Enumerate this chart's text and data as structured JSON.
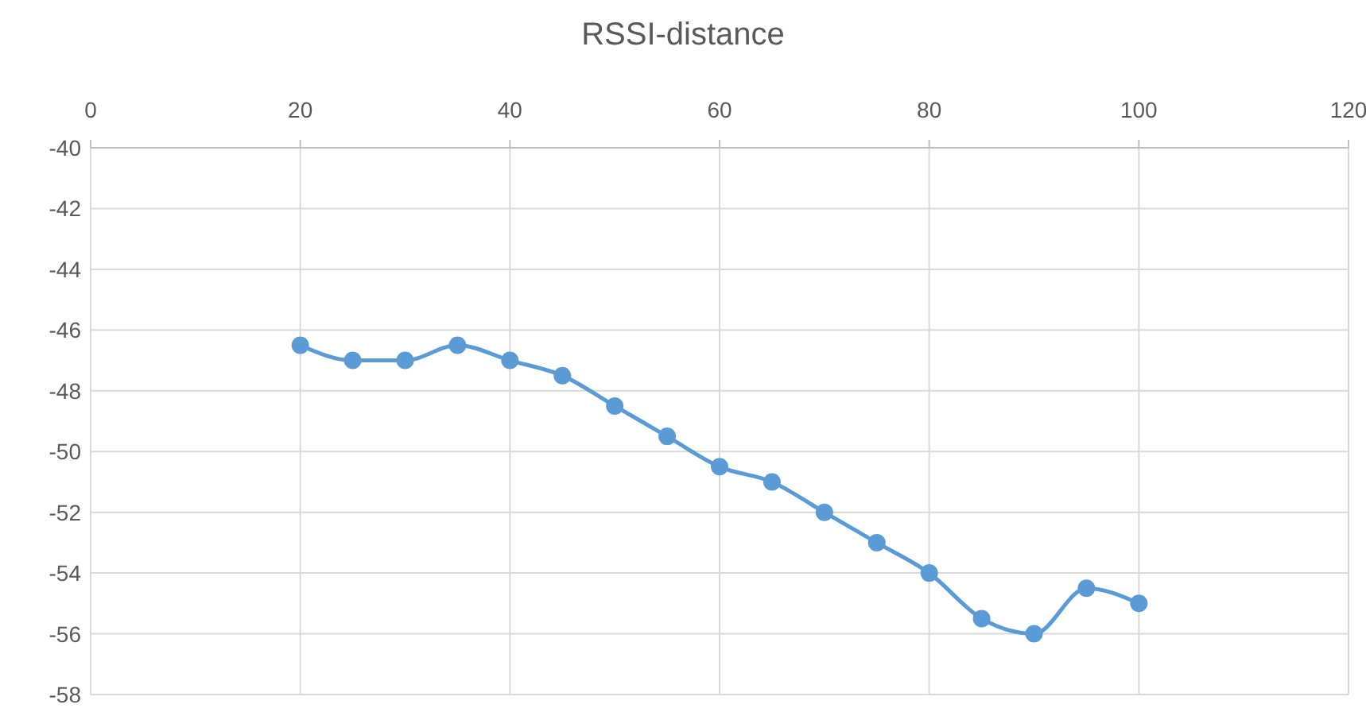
{
  "chart_data": {
    "type": "line",
    "title": "RSSI-distance",
    "x": [
      20,
      25,
      30,
      35,
      40,
      45,
      50,
      55,
      60,
      65,
      70,
      75,
      80,
      85,
      90,
      95,
      100
    ],
    "series": [
      {
        "color": "#5b9bd5",
        "values": [
          -46.5,
          -47,
          -47,
          -46.5,
          -47,
          -47.5,
          -48.5,
          -49.5,
          -50.5,
          -51,
          -52,
          -53,
          -54,
          -55.5,
          -56,
          -54.5,
          -55
        ]
      }
    ],
    "xlim": [
      0,
      120
    ],
    "xticks": [
      0,
      20,
      40,
      60,
      80,
      100,
      120
    ],
    "ylim": [
      -58,
      -40
    ],
    "yticks": [
      -58,
      -56,
      -54,
      -52,
      -50,
      -48,
      -46,
      -44,
      -42,
      -40
    ],
    "grid": true,
    "marker": "circle",
    "line_style": "solid"
  }
}
